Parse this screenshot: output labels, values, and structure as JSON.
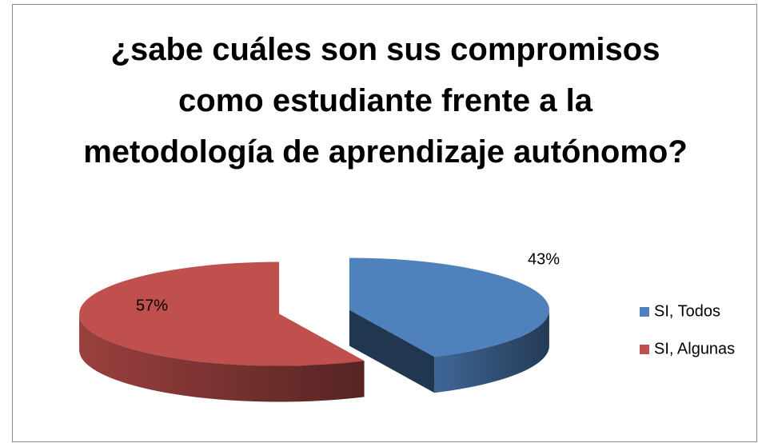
{
  "chart_data": {
    "type": "pie",
    "title": "¿sabe cuáles son sus compromisos como estudiante frente a la metodología de aprendizaje autónomo?",
    "categories": [
      "SI, Todos",
      "SI, Algunas"
    ],
    "series": [
      {
        "values": [
          43,
          57
        ],
        "value_labels": [
          "43%",
          "57%"
        ],
        "colors": [
          "#4f81bd",
          "#c0504d"
        ]
      }
    ],
    "legend": "right"
  }
}
